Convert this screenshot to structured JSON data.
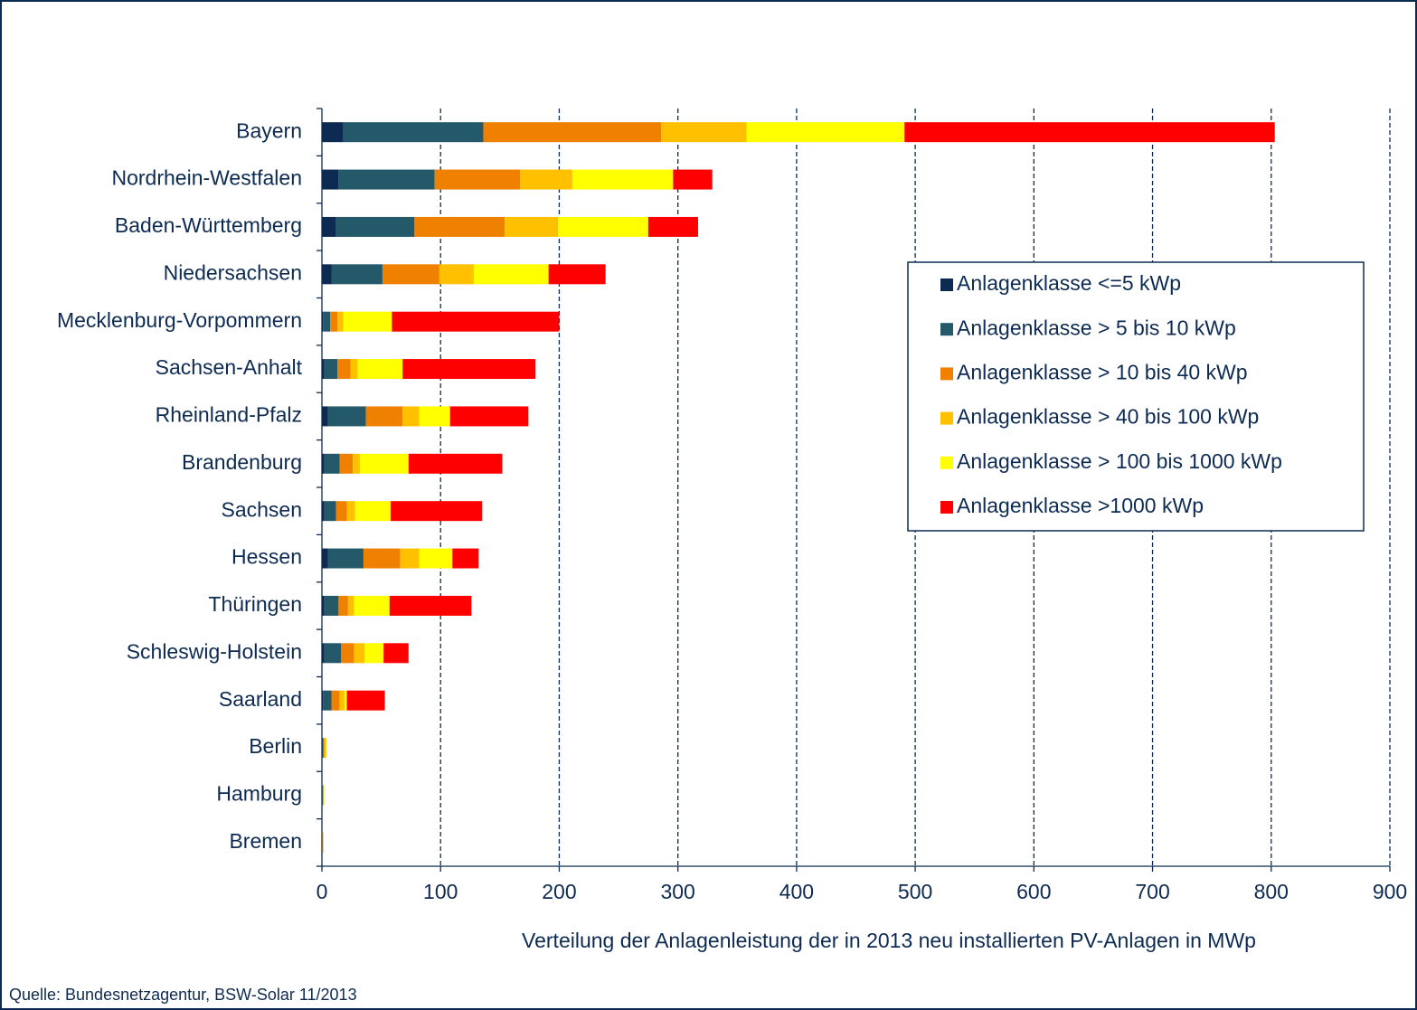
{
  "chart_data": {
    "type": "bar",
    "orientation": "horizontal",
    "stacked": true,
    "grid": true,
    "xlabel": "Verteilung der Anlagenleistung der in 2013 neu installierten PV-Anlagen in MWp",
    "source": "Quelle: Bundesnetzagentur, BSW-Solar 11/2013",
    "categories": [
      "Bayern",
      "Nordrhein-Westfalen",
      "Baden-Württemberg",
      "Niedersachsen",
      "Mecklenburg-Vorpommern",
      "Sachsen-Anhalt",
      "Rheinland-Pfalz",
      "Brandenburg",
      "Sachsen",
      "Hessen",
      "Thüringen",
      "Schleswig-Holstein",
      "Saarland",
      "Berlin",
      "Hamburg",
      "Bremen"
    ],
    "series": [
      {
        "name": "Anlagenklasse <=5 kWp",
        "color": "#0d2b52",
        "values": [
          18,
          14,
          12,
          8,
          1,
          2,
          5,
          2,
          2,
          5,
          2,
          2,
          1,
          0.3,
          0.2,
          0.1
        ]
      },
      {
        "name": "Anlagenklasse > 5 bis 10 kWp",
        "color": "#24596a",
        "values": [
          118,
          81,
          66,
          43,
          6,
          11,
          32,
          13,
          10,
          30,
          12,
          14,
          7,
          1,
          0.5,
          0.3
        ]
      },
      {
        "name": "Anlagenklasse > 10 bis 40 kWp",
        "color": "#f08000",
        "values": [
          150,
          72,
          76,
          48,
          6,
          11,
          31,
          11,
          9,
          31,
          8,
          11,
          7,
          0.7,
          0.5,
          0.5
        ]
      },
      {
        "name": "Anlagenklasse > 40 bis 100 kWp",
        "color": "#ffc000",
        "values": [
          72,
          44,
          45,
          29,
          5,
          6,
          14,
          6,
          7,
          16,
          5,
          9,
          4,
          1.5,
          0.5,
          0.5
        ]
      },
      {
        "name": "Anlagenklasse > 100 bis 1000 kWp",
        "color": "#ffff00",
        "values": [
          133,
          85,
          76,
          63,
          41,
          38,
          26,
          41,
          30,
          28,
          30,
          16,
          2,
          0.5,
          0.3,
          0.1
        ]
      },
      {
        "name": "Anlagenklasse >1000 kWp",
        "color": "#ff0000",
        "values": [
          312,
          33,
          42,
          48,
          141,
          112,
          66,
          79,
          77,
          22,
          69,
          21,
          32,
          0,
          0,
          0
        ]
      }
    ],
    "xlim": [
      0,
      900
    ],
    "xticks": [
      0,
      100,
      200,
      300,
      400,
      500,
      600,
      700,
      800,
      900
    ]
  }
}
